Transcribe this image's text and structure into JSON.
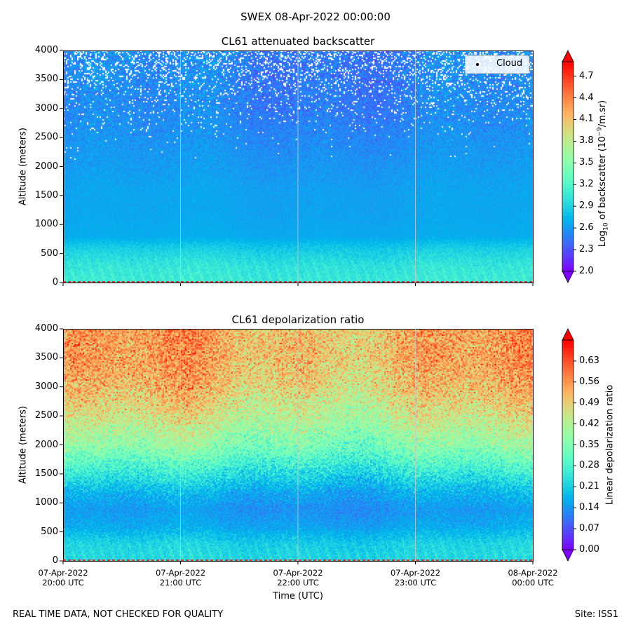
{
  "suptitle": "SWEX 08-Apr-2022 00:00:00",
  "footer_left": "REAL TIME DATA, NOT CHECKED FOR QUALITY",
  "footer_right": "Site: ISS1",
  "chart_data": [
    {
      "type": "heatmap",
      "title": "CL61 attenuated backscatter",
      "xlabel": "",
      "ylabel": "Altitude (meters)",
      "ylim": [
        0,
        4000
      ],
      "yticks": [
        "0",
        "500",
        "1000",
        "1500",
        "2000",
        "2500",
        "3000",
        "3500",
        "4000"
      ],
      "xticks": [],
      "colorbar": {
        "label": "Log10 of backscatter (10^-9/m.sr)",
        "label_main": "Log",
        "label_sub": "10",
        "label_rest": " of backscatter (10",
        "label_sup": "−9",
        "label_end": "/m.sr)",
        "range": [
          2.0,
          4.9
        ],
        "ticks": [
          "2.0",
          "2.3",
          "2.6",
          "2.9",
          "3.2",
          "3.5",
          "3.8",
          "4.1",
          "4.4",
          "4.7"
        ],
        "colormap": "rainbow",
        "extend": "both"
      },
      "legend": {
        "entries": [
          "Cloud"
        ],
        "placement": "upper right"
      },
      "profile": {
        "altitude": [
          0,
          300,
          600,
          800,
          1200,
          1600,
          2000,
          2500,
          3000,
          3500,
          4000
        ],
        "mean_value": [
          3.05,
          3.0,
          2.85,
          2.68,
          2.65,
          2.64,
          2.6,
          2.55,
          2.5,
          2.5,
          2.5
        ],
        "noise": [
          0.08,
          0.1,
          0.08,
          0.04,
          0.05,
          0.06,
          0.08,
          0.12,
          0.16,
          0.2,
          0.22
        ],
        "missing_fraction": [
          0,
          0,
          0,
          0,
          0,
          0,
          0,
          0.01,
          0.05,
          0.14,
          0.22
        ]
      }
    },
    {
      "type": "heatmap",
      "title": "CL61 depolarization ratio",
      "xlabel": "Time (UTC)",
      "ylabel": "Altitude (meters)",
      "ylim": [
        0,
        4000
      ],
      "yticks": [
        "0",
        "500",
        "1000",
        "1500",
        "2000",
        "2500",
        "3000",
        "3500",
        "4000"
      ],
      "xticks": [
        [
          "07-Apr-2022",
          "20:00 UTC"
        ],
        [
          "07-Apr-2022",
          "21:00 UTC"
        ],
        [
          "07-Apr-2022",
          "22:00 UTC"
        ],
        [
          "07-Apr-2022",
          "23:00 UTC"
        ],
        [
          "08-Apr-2022",
          "00:00 UTC"
        ]
      ],
      "colorbar": {
        "label": "Linear depolarization ratio",
        "range": [
          0.0,
          0.7
        ],
        "ticks": [
          "0.00",
          "0.07",
          "0.14",
          "0.21",
          "0.28",
          "0.35",
          "0.42",
          "0.49",
          "0.56",
          "0.63"
        ],
        "colormap": "rainbow",
        "extend": "both"
      },
      "profile": {
        "altitude": [
          0,
          300,
          600,
          900,
          1200,
          1600,
          2000,
          2500,
          3000,
          3500,
          4000
        ],
        "mean_value": [
          0.22,
          0.21,
          0.16,
          0.14,
          0.17,
          0.26,
          0.36,
          0.44,
          0.5,
          0.53,
          0.53
        ],
        "noise": [
          0.02,
          0.03,
          0.03,
          0.03,
          0.05,
          0.07,
          0.09,
          0.1,
          0.11,
          0.11,
          0.11
        ]
      }
    }
  ],
  "colors": {
    "gridline": "#c8c8c8",
    "surface_line": "#ff0000"
  }
}
